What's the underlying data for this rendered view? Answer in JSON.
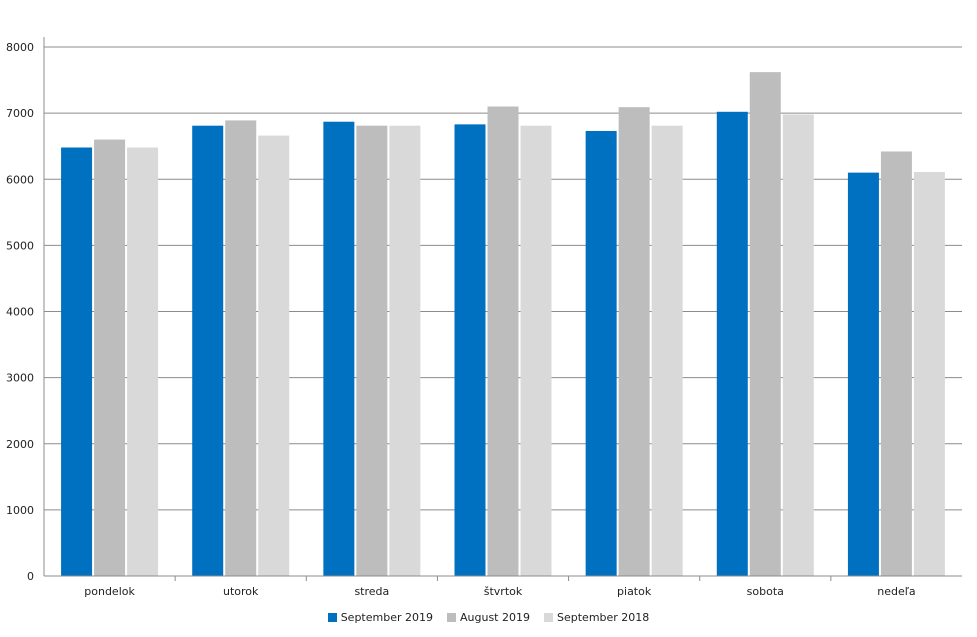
{
  "chart_data": {
    "type": "bar",
    "title": "",
    "xlabel": "",
    "ylabel": "",
    "ylim": [
      0,
      8000
    ],
    "yticks": [
      0,
      1000,
      2000,
      3000,
      4000,
      5000,
      6000,
      7000,
      8000
    ],
    "categories": [
      "pondelok",
      "utorok",
      "streda",
      "štvrtok",
      "piatok",
      "sobota",
      "nedeľa"
    ],
    "series": [
      {
        "name": "September 2019",
        "color": "#0070c0",
        "values": [
          6480,
          6810,
          6870,
          6830,
          6730,
          7020,
          6100
        ]
      },
      {
        "name": "August 2019",
        "color": "#bdbdbd",
        "values": [
          6600,
          6890,
          6810,
          7100,
          7090,
          7620,
          6420
        ]
      },
      {
        "name": "September 2018",
        "color": "#d9d9d9",
        "values": [
          6480,
          6660,
          6810,
          6810,
          6810,
          6980,
          6110
        ]
      }
    ],
    "grid": true,
    "legend_position": "bottom-center"
  }
}
